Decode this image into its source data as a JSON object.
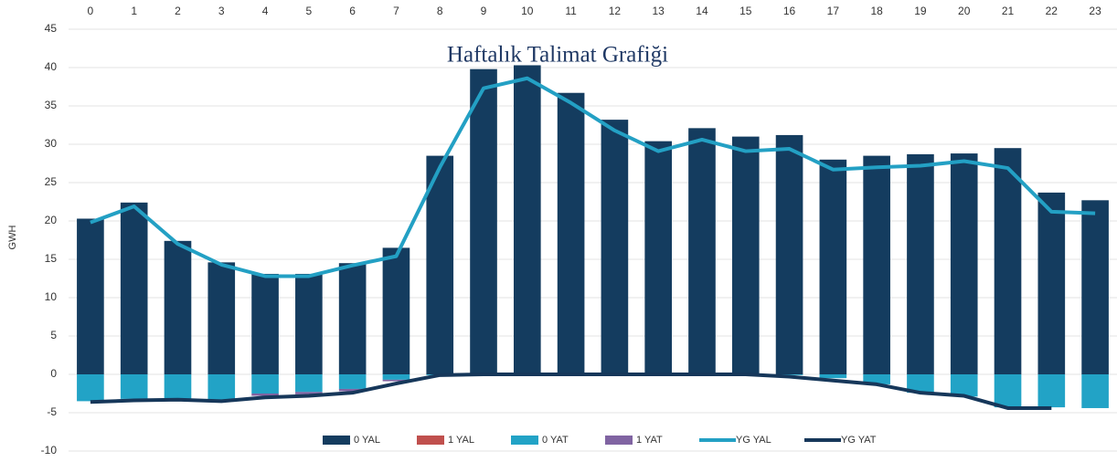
{
  "chart_data": {
    "type": "bar",
    "title": "Haftalık Talimat Grafiği",
    "y_label": "GWH",
    "categories": [
      "0",
      "1",
      "2",
      "3",
      "4",
      "5",
      "6",
      "7",
      "8",
      "9",
      "10",
      "11",
      "12",
      "13",
      "14",
      "15",
      "16",
      "17",
      "18",
      "19",
      "20",
      "21",
      "22",
      "23"
    ],
    "ylim": [
      -10,
      45
    ],
    "yticks": [
      -10,
      -5,
      0,
      5,
      10,
      15,
      20,
      25,
      30,
      35,
      40,
      45
    ],
    "grid": true,
    "stacked": true,
    "legend": "bottom",
    "series": [
      {
        "name": "0 YAL",
        "type": "bar",
        "color": "#143c5f",
        "values": [
          20.3,
          22.4,
          17.4,
          14.6,
          13.1,
          13.1,
          14.5,
          16.5,
          28.5,
          39.8,
          40.3,
          36.7,
          33.2,
          30.4,
          32.1,
          31.0,
          31.2,
          28.0,
          28.5,
          28.7,
          28.8,
          29.5,
          23.7,
          22.7
        ]
      },
      {
        "name": "1 YAL",
        "type": "bar",
        "color": "#c0504d",
        "values": [
          0,
          0,
          0,
          0,
          0,
          0,
          0,
          0,
          0,
          0,
          0,
          0,
          0,
          0,
          0,
          0,
          0,
          0,
          0,
          0,
          0,
          0,
          0,
          0
        ]
      },
      {
        "name": "0 YAT",
        "type": "bar",
        "color": "#22a3c6",
        "values": [
          -3.5,
          -3.2,
          -3.2,
          -3.3,
          -2.5,
          -2.3,
          -1.9,
          -0.7,
          -0.1,
          0,
          0,
          0,
          0,
          0,
          0,
          0,
          -0.1,
          -0.5,
          -1.3,
          -2.4,
          -2.9,
          -4.3,
          -4.3,
          -4.4
        ]
      },
      {
        "name": "1 YAT",
        "type": "bar",
        "color": "#8064a2",
        "values": [
          0,
          0,
          0,
          0,
          -0.3,
          -0.3,
          -0.3,
          -0.2,
          0,
          0,
          0,
          0,
          0,
          0,
          0,
          0,
          0,
          0,
          0,
          0,
          0,
          0,
          0,
          0
        ]
      },
      {
        "name": "YG YAL",
        "type": "line",
        "color": "#23a0c4",
        "values": [
          19.8,
          21.9,
          17.0,
          14.3,
          12.8,
          12.8,
          14.2,
          15.4,
          27.0,
          37.3,
          38.6,
          35.4,
          31.8,
          29.1,
          30.6,
          29.1,
          29.4,
          26.7,
          27.0,
          27.2,
          27.8,
          26.9,
          21.2,
          21.0
        ]
      },
      {
        "name": "YG YAT",
        "type": "line",
        "color": "#16375a",
        "values": [
          -3.6,
          -3.4,
          -3.3,
          -3.5,
          -3.0,
          -2.8,
          -2.4,
          -1.2,
          -0.1,
          0,
          0,
          0,
          0,
          0,
          0,
          0,
          -0.3,
          -0.8,
          -1.3,
          -2.4,
          -2.8,
          -4.4,
          -4.4,
          null
        ]
      }
    ]
  }
}
